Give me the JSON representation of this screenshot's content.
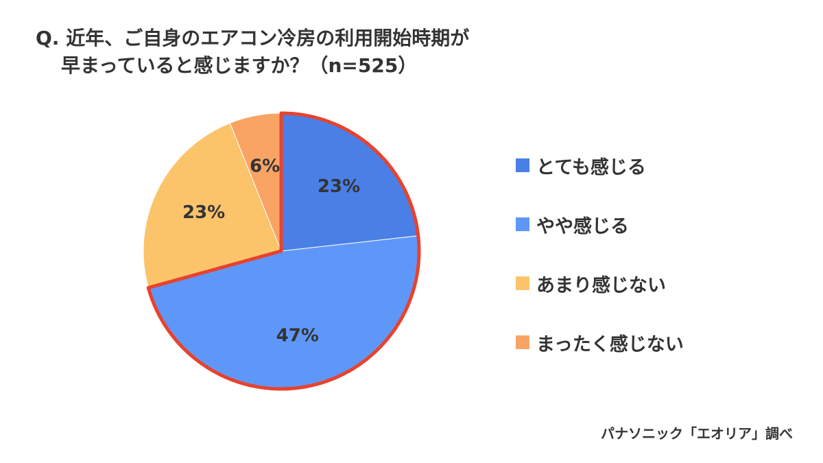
{
  "chart_data": {
    "type": "pie",
    "title_line1": "Q. 近年、ご自身のエアコン冷房の利用開始時期が",
    "title_line2": "早まっていると感じますか？（n=525）",
    "categories": [
      "とても感じる",
      "やや感じる",
      "あまり感じない",
      "まったく感じない"
    ],
    "values": [
      23,
      47,
      23,
      6
    ],
    "data_labels": [
      "23%",
      "47%",
      "23%",
      "6%"
    ],
    "colors": [
      "#4a7fe6",
      "#5f97f8",
      "#fbc46b",
      "#f9a465"
    ],
    "highlight": {
      "slices": [
        0,
        1
      ],
      "outline_color": "#e8422e"
    },
    "legend_position": "right",
    "source": "パナソニック「エオリア」調べ"
  }
}
